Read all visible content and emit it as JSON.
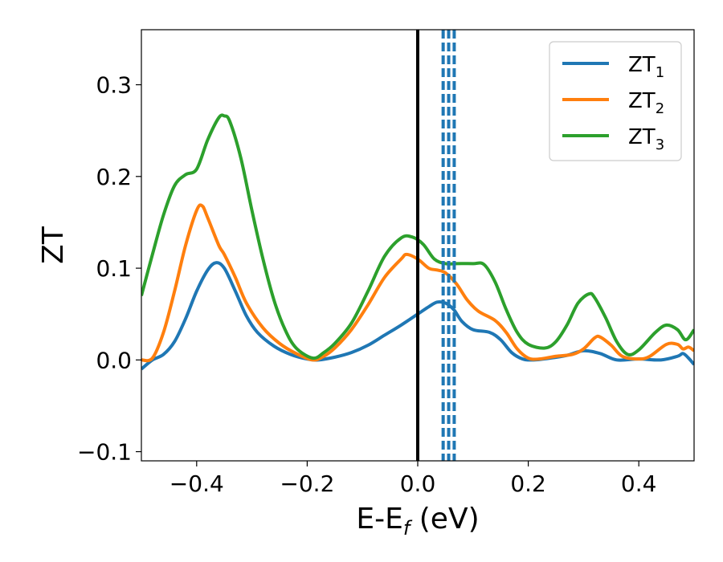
{
  "chart_data": {
    "type": "line",
    "title": "",
    "xlabel": {
      "main": "E-E",
      "sub": "f",
      "unit": " (eV)"
    },
    "ylabel": "ZT",
    "xlim": [
      -0.5,
      0.5
    ],
    "ylim": [
      -0.11,
      0.36
    ],
    "x_ticks": [
      -0.4,
      -0.2,
      0.0,
      0.2,
      0.4
    ],
    "x_tick_labels": [
      "−0.4",
      "−0.2",
      "0.0",
      "0.2",
      "0.4"
    ],
    "y_ticks": [
      -0.1,
      0.0,
      0.1,
      0.2,
      0.3
    ],
    "y_tick_labels": [
      "−0.1",
      "0.0",
      "0.1",
      "0.2",
      "0.3"
    ],
    "grid": false,
    "legend_position": "top-right",
    "fermi_line": {
      "x": 0.0,
      "color": "#000000"
    },
    "dashed_lines": {
      "x": [
        0.046,
        0.056,
        0.066
      ],
      "color": "#1f77b4"
    },
    "series": [
      {
        "name_main": "ZT",
        "name_sub": "1",
        "color": "#1f77b4",
        "points": [
          [
            -0.5,
            -0.01
          ],
          [
            -0.48,
            0.0
          ],
          [
            -0.46,
            0.006
          ],
          [
            -0.44,
            0.02
          ],
          [
            -0.42,
            0.045
          ],
          [
            -0.4,
            0.075
          ],
          [
            -0.38,
            0.098
          ],
          [
            -0.365,
            0.106
          ],
          [
            -0.35,
            0.1
          ],
          [
            -0.33,
            0.075
          ],
          [
            -0.31,
            0.048
          ],
          [
            -0.29,
            0.03
          ],
          [
            -0.26,
            0.015
          ],
          [
            -0.23,
            0.006
          ],
          [
            -0.2,
            0.001
          ],
          [
            -0.18,
            0.0
          ],
          [
            -0.15,
            0.003
          ],
          [
            -0.12,
            0.008
          ],
          [
            -0.09,
            0.016
          ],
          [
            -0.06,
            0.027
          ],
          [
            -0.03,
            0.038
          ],
          [
            0.0,
            0.05
          ],
          [
            0.02,
            0.058
          ],
          [
            0.035,
            0.063
          ],
          [
            0.05,
            0.062
          ],
          [
            0.065,
            0.055
          ],
          [
            0.08,
            0.042
          ],
          [
            0.1,
            0.033
          ],
          [
            0.13,
            0.03
          ],
          [
            0.15,
            0.022
          ],
          [
            0.17,
            0.008
          ],
          [
            0.19,
            0.001
          ],
          [
            0.21,
            0.0
          ],
          [
            0.24,
            0.002
          ],
          [
            0.27,
            0.005
          ],
          [
            0.3,
            0.01
          ],
          [
            0.33,
            0.007
          ],
          [
            0.36,
            0.0
          ],
          [
            0.4,
            0.001
          ],
          [
            0.44,
            0.0
          ],
          [
            0.47,
            0.004
          ],
          [
            0.48,
            0.007
          ],
          [
            0.49,
            0.002
          ],
          [
            0.5,
            -0.005
          ]
        ]
      },
      {
        "name_main": "ZT",
        "name_sub": "2",
        "color": "#ff7f0e",
        "points": [
          [
            -0.5,
            0.0
          ],
          [
            -0.48,
            0.002
          ],
          [
            -0.46,
            0.03
          ],
          [
            -0.44,
            0.075
          ],
          [
            -0.42,
            0.125
          ],
          [
            -0.4,
            0.163
          ],
          [
            -0.39,
            0.168
          ],
          [
            -0.38,
            0.155
          ],
          [
            -0.36,
            0.125
          ],
          [
            -0.35,
            0.115
          ],
          [
            -0.33,
            0.09
          ],
          [
            -0.31,
            0.062
          ],
          [
            -0.28,
            0.035
          ],
          [
            -0.25,
            0.018
          ],
          [
            -0.22,
            0.007
          ],
          [
            -0.19,
            0.0
          ],
          [
            -0.17,
            0.004
          ],
          [
            -0.15,
            0.013
          ],
          [
            -0.12,
            0.033
          ],
          [
            -0.09,
            0.06
          ],
          [
            -0.06,
            0.09
          ],
          [
            -0.03,
            0.11
          ],
          [
            -0.02,
            0.115
          ],
          [
            0.0,
            0.11
          ],
          [
            0.02,
            0.1
          ],
          [
            0.035,
            0.098
          ],
          [
            0.05,
            0.095
          ],
          [
            0.07,
            0.083
          ],
          [
            0.09,
            0.065
          ],
          [
            0.11,
            0.053
          ],
          [
            0.14,
            0.043
          ],
          [
            0.16,
            0.03
          ],
          [
            0.18,
            0.012
          ],
          [
            0.2,
            0.002
          ],
          [
            0.22,
            0.001
          ],
          [
            0.25,
            0.004
          ],
          [
            0.28,
            0.006
          ],
          [
            0.3,
            0.012
          ],
          [
            0.32,
            0.024
          ],
          [
            0.33,
            0.025
          ],
          [
            0.35,
            0.016
          ],
          [
            0.37,
            0.004
          ],
          [
            0.4,
            0.001
          ],
          [
            0.42,
            0.004
          ],
          [
            0.45,
            0.017
          ],
          [
            0.47,
            0.017
          ],
          [
            0.48,
            0.012
          ],
          [
            0.49,
            0.014
          ],
          [
            0.5,
            0.01
          ]
        ]
      },
      {
        "name_main": "ZT",
        "name_sub": "3",
        "color": "#2ca02c",
        "points": [
          [
            -0.5,
            0.07
          ],
          [
            -0.48,
            0.115
          ],
          [
            -0.46,
            0.158
          ],
          [
            -0.44,
            0.19
          ],
          [
            -0.42,
            0.202
          ],
          [
            -0.4,
            0.208
          ],
          [
            -0.38,
            0.24
          ],
          [
            -0.36,
            0.264
          ],
          [
            -0.35,
            0.266
          ],
          [
            -0.34,
            0.26
          ],
          [
            -0.32,
            0.22
          ],
          [
            -0.3,
            0.163
          ],
          [
            -0.28,
            0.11
          ],
          [
            -0.26,
            0.065
          ],
          [
            -0.24,
            0.033
          ],
          [
            -0.22,
            0.013
          ],
          [
            -0.19,
            0.002
          ],
          [
            -0.17,
            0.008
          ],
          [
            -0.15,
            0.018
          ],
          [
            -0.12,
            0.04
          ],
          [
            -0.09,
            0.075
          ],
          [
            -0.06,
            0.113
          ],
          [
            -0.03,
            0.133
          ],
          [
            -0.01,
            0.134
          ],
          [
            0.01,
            0.126
          ],
          [
            0.03,
            0.11
          ],
          [
            0.05,
            0.105
          ],
          [
            0.07,
            0.105
          ],
          [
            0.1,
            0.105
          ],
          [
            0.12,
            0.104
          ],
          [
            0.14,
            0.085
          ],
          [
            0.16,
            0.055
          ],
          [
            0.18,
            0.03
          ],
          [
            0.2,
            0.017
          ],
          [
            0.23,
            0.013
          ],
          [
            0.25,
            0.02
          ],
          [
            0.27,
            0.038
          ],
          [
            0.29,
            0.062
          ],
          [
            0.31,
            0.072
          ],
          [
            0.32,
            0.068
          ],
          [
            0.34,
            0.046
          ],
          [
            0.36,
            0.02
          ],
          [
            0.38,
            0.006
          ],
          [
            0.4,
            0.011
          ],
          [
            0.43,
            0.03
          ],
          [
            0.45,
            0.038
          ],
          [
            0.47,
            0.033
          ],
          [
            0.485,
            0.022
          ],
          [
            0.5,
            0.033
          ]
        ]
      }
    ]
  }
}
